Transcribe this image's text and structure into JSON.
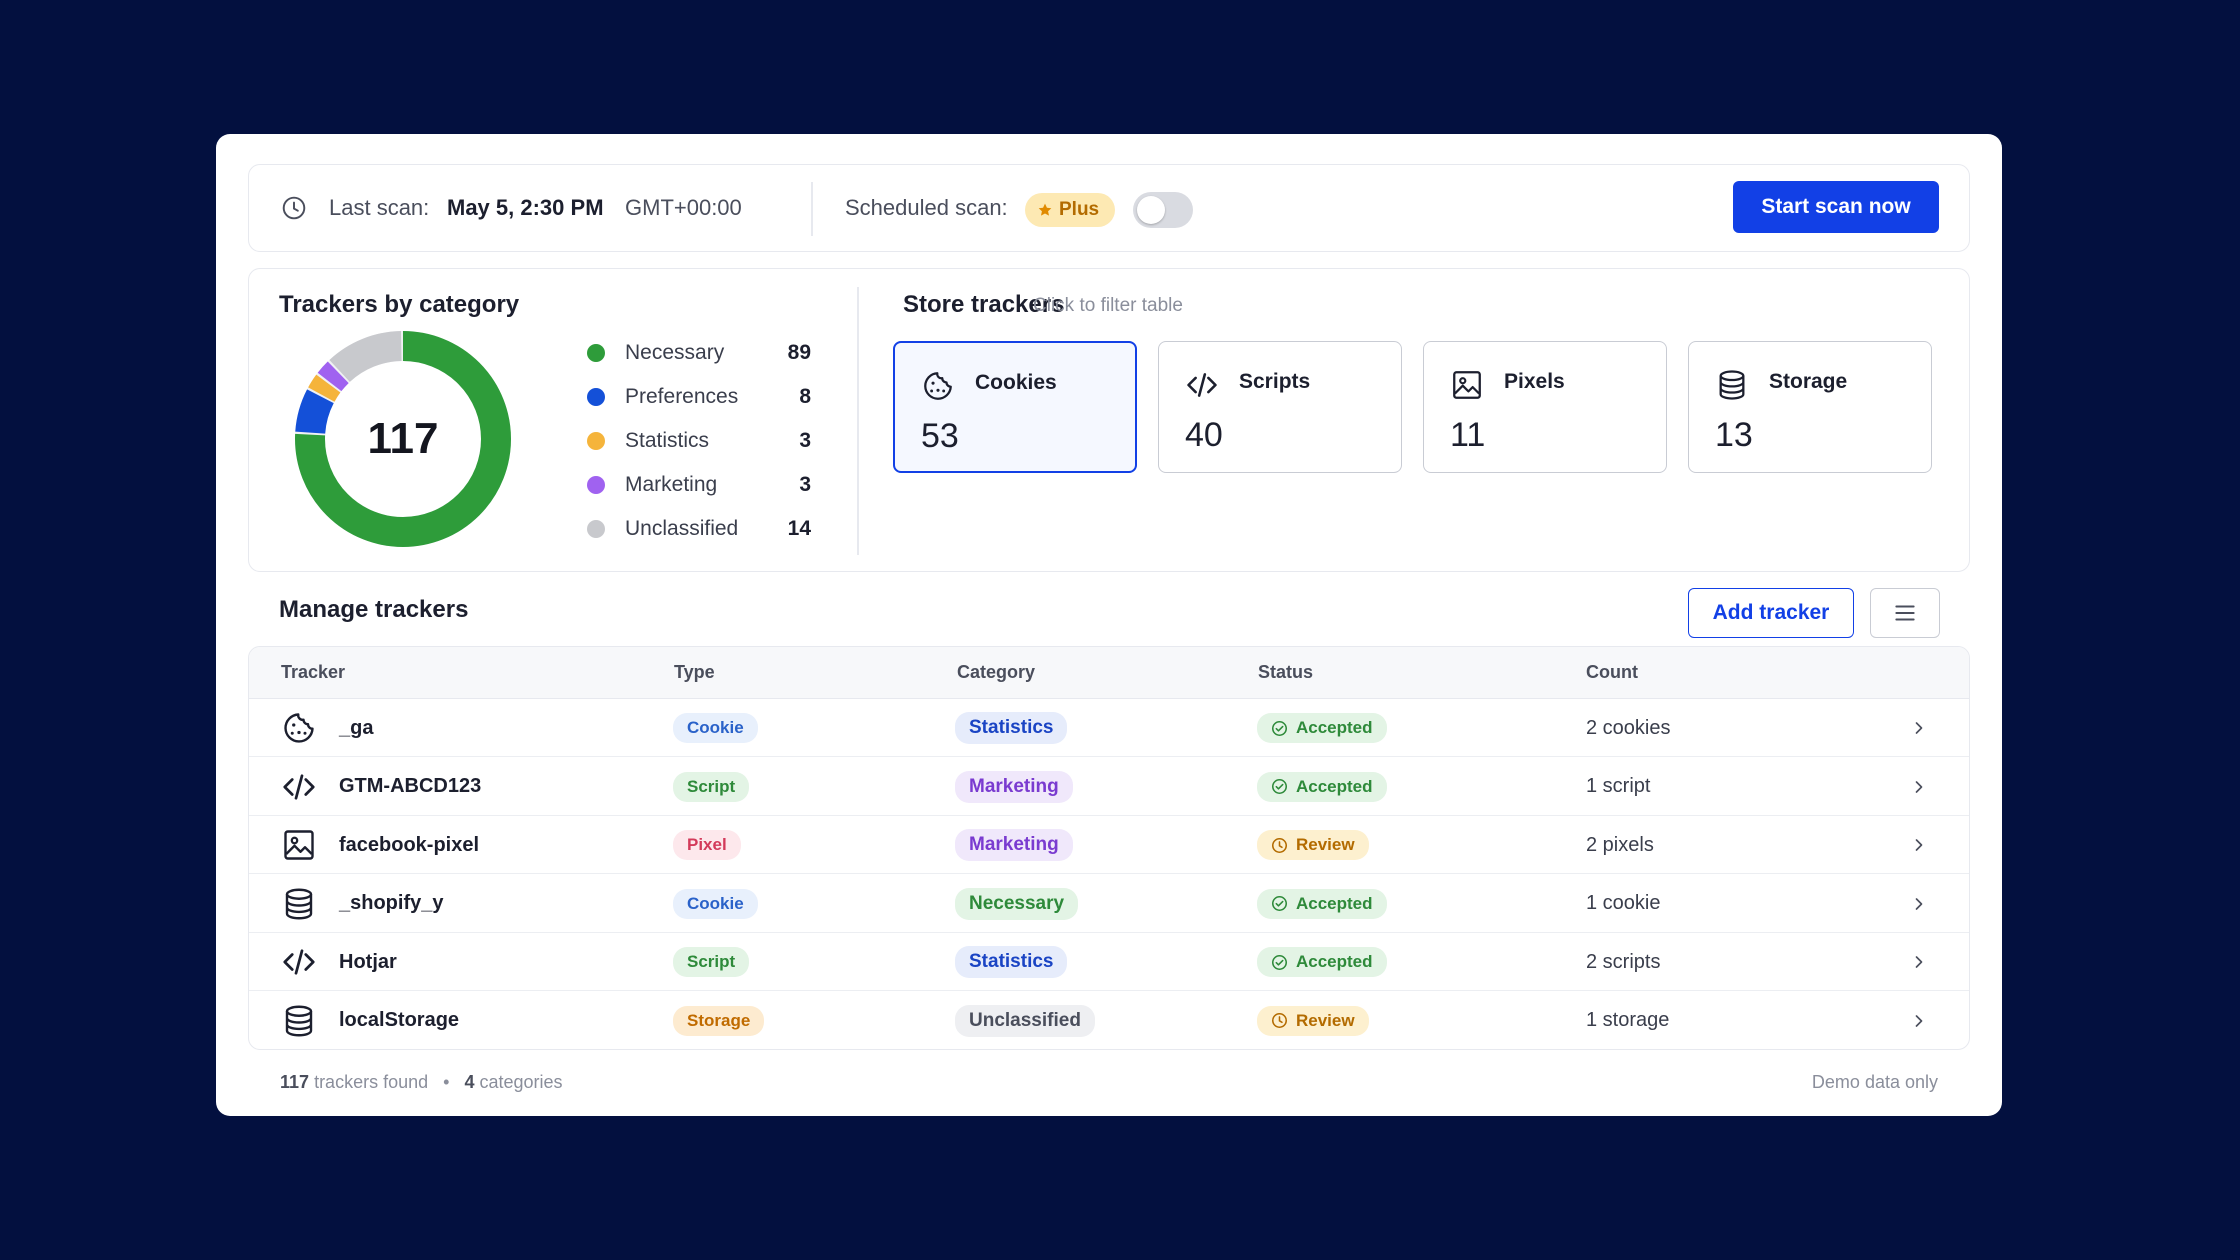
{
  "header": {
    "last_scan_label": "Last scan:",
    "last_scan_date": "May 5, 2:30 PM",
    "last_scan_tz": "GMT+00:00",
    "scheduled_label": "Scheduled scan:",
    "plus_badge": "Plus",
    "scheduled_enabled": false,
    "start_button": "Start scan now"
  },
  "category_panel": {
    "title": "Trackers by category",
    "total": "117",
    "items": [
      {
        "name": "Necessary",
        "count": "89",
        "value": 89,
        "color": "#2e9c3a"
      },
      {
        "name": "Preferences",
        "count": "8",
        "value": 8,
        "color": "#1450d8"
      },
      {
        "name": "Statistics",
        "count": "3",
        "value": 3,
        "color": "#f5b43b"
      },
      {
        "name": "Marketing",
        "count": "3",
        "value": 3,
        "color": "#a062f0"
      },
      {
        "name": "Unclassified",
        "count": "14",
        "value": 14,
        "color": "#c8c9cd"
      }
    ]
  },
  "store_trackers": {
    "title": "Store trackers",
    "hint": "Click to filter table",
    "tiles": [
      {
        "name": "Cookies",
        "value": "53",
        "icon": "cookie-icon",
        "selected": true
      },
      {
        "name": "Scripts",
        "value": "40",
        "icon": "code-icon",
        "selected": false
      },
      {
        "name": "Pixels",
        "value": "11",
        "icon": "image-icon",
        "selected": false
      },
      {
        "name": "Storage",
        "value": "13",
        "icon": "database-icon",
        "selected": false
      }
    ]
  },
  "manage": {
    "title": "Manage trackers",
    "add_button": "Add tracker",
    "filter_icon": "list-filter-icon",
    "columns": [
      "Tracker",
      "Type",
      "Category",
      "Status",
      "Count"
    ],
    "rows": [
      {
        "icon": "cookie-icon",
        "name": "_ga",
        "type": "Cookie",
        "category": "Statistics",
        "status": "Accepted",
        "count": "2 cookies"
      },
      {
        "icon": "code-icon",
        "name": "GTM-ABCD123",
        "type": "Script",
        "category": "Marketing",
        "status": "Accepted",
        "count": "1 script"
      },
      {
        "icon": "image-icon",
        "name": "facebook-pixel",
        "type": "Pixel",
        "category": "Marketing",
        "status": "Review",
        "count": "2 pixels"
      },
      {
        "icon": "database-icon",
        "name": "_shopify_y",
        "type": "Cookie",
        "category": "Necessary",
        "status": "Accepted",
        "count": "1 cookie"
      },
      {
        "icon": "code-icon",
        "name": "Hotjar",
        "type": "Script",
        "category": "Statistics",
        "status": "Accepted",
        "count": "2 scripts"
      },
      {
        "icon": "database-icon",
        "name": "localStorage",
        "type": "Storage",
        "category": "Unclassified",
        "status": "Review",
        "count": "1 storage"
      }
    ]
  },
  "footer": {
    "trackers_num": "117",
    "trackers_label": "trackers found",
    "separator": "•",
    "categories_num": "4",
    "categories_label": "categories",
    "demo_note": "Demo data only"
  },
  "colors": {
    "accent": "#1240e6",
    "background": "#03103f",
    "type_pills": {
      "Cookie": {
        "bg": "#e8f0fc",
        "fg": "#2a62c9"
      },
      "Script": {
        "bg": "#e3f4e5",
        "fg": "#2e8a3a"
      },
      "Pixel": {
        "bg": "#fde8ec",
        "fg": "#d33a5a"
      },
      "Storage": {
        "bg": "#fdebd0",
        "fg": "#c06b00"
      }
    },
    "category_pills": {
      "Statistics": {
        "bg": "#e6ecfb",
        "fg": "#1a44c4"
      },
      "Marketing": {
        "bg": "#f0e8fb",
        "fg": "#7a3bd0"
      },
      "Necessary": {
        "bg": "#e3f4e5",
        "fg": "#2e8a3a"
      },
      "Unclassified": {
        "bg": "#eeeff2",
        "fg": "#4a4e5c"
      }
    },
    "status_pills": {
      "Accepted": {
        "bg": "#e3f4e5",
        "fg": "#2e8a3a"
      },
      "Review": {
        "bg": "#fdf0cf",
        "fg": "#b36b00"
      }
    }
  }
}
